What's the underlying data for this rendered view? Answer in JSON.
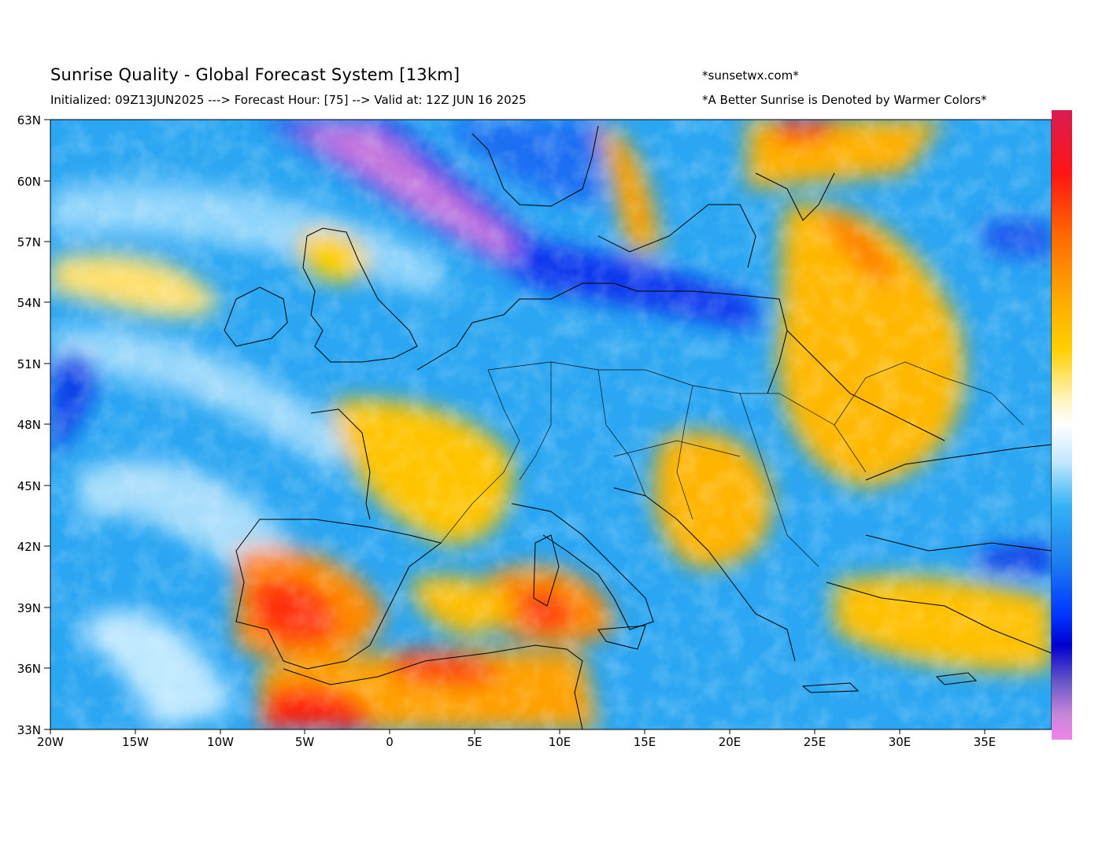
{
  "header": {
    "title": "Sunrise Quality - Global Forecast System [13km]",
    "subtitle": "Initialized: 09Z13JUN2025 ---> Forecast Hour: [75] --> Valid at: 12Z JUN 16 2025",
    "site": "*sunsetwx.com*",
    "note": "*A Better Sunrise is Denoted by Warmer Colors*"
  },
  "map": {
    "lat_labels": [
      "63N",
      "60N",
      "57N",
      "54N",
      "51N",
      "48N",
      "45N",
      "42N",
      "39N",
      "36N",
      "33N"
    ],
    "lon_labels": [
      "20W",
      "15W",
      "10W",
      "5W",
      "0",
      "5E",
      "10E",
      "15E",
      "20E",
      "25E",
      "30E",
      "35E"
    ],
    "lat_range": [
      33,
      63
    ],
    "lon_range": [
      -20,
      39
    ],
    "colorbar": {
      "stops": [
        "#e5185c",
        "#ff1a10",
        "#ff7a00",
        "#ffb300",
        "#ffd400",
        "#fff3b0",
        "#ffffff",
        "#bfe8ff",
        "#35b3f5",
        "#1f7ff0",
        "#0040ff",
        "#0000d8",
        "#7b4fc8",
        "#e07fe8"
      ]
    }
  }
}
